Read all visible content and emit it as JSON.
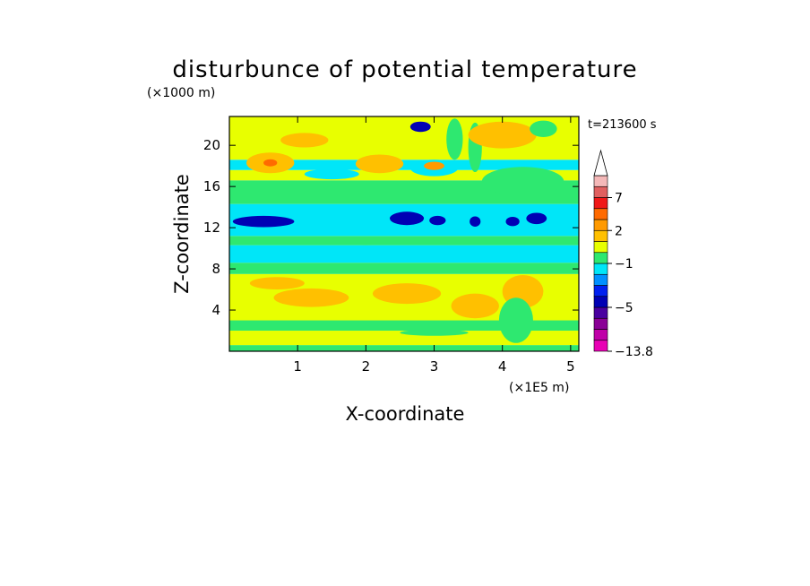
{
  "chart_data": {
    "type": "heatmap",
    "title": "disturbunce of potential temperature",
    "xlabel": "X-coordinate",
    "ylabel": "Z-coordinate",
    "x_unit": "(×1E5 m)",
    "y_unit": "(×1000 m)",
    "time_label": "t=213600 s",
    "xlim": [
      0,
      5.12
    ],
    "ylim": [
      0,
      22.8
    ],
    "x_ticks": [
      1,
      2,
      3,
      4,
      5
    ],
    "y_ticks": [
      4,
      8,
      12,
      16,
      20
    ],
    "grid": false,
    "legend": "colorbar-right",
    "colorbar": {
      "labels": [
        {
          "text": "7",
          "value": 7
        },
        {
          "text": "2",
          "value": 2
        },
        {
          "text": "−1",
          "value": -1
        },
        {
          "text": "−5",
          "value": -5
        },
        {
          "text": "−13.8",
          "value": -13.8
        }
      ],
      "levels": [
        {
          "min": -13.8,
          "max": -9,
          "color": "#e800b4"
        },
        {
          "min": -9,
          "max": -7,
          "color": "#c000a8"
        },
        {
          "min": -7,
          "max": -6,
          "color": "#8a0096"
        },
        {
          "min": -6,
          "max": -5,
          "color": "#4a00a0"
        },
        {
          "min": -5,
          "max": -4,
          "color": "#0000b4"
        },
        {
          "min": -4,
          "max": -3,
          "color": "#0020f0"
        },
        {
          "min": -3,
          "max": -2,
          "color": "#0090ff"
        },
        {
          "min": -2,
          "max": -1,
          "color": "#00e6f8"
        },
        {
          "min": -1,
          "max": 0,
          "color": "#2ee870"
        },
        {
          "min": 0,
          "max": 1,
          "color": "#e8ff00"
        },
        {
          "min": 1,
          "max": 2,
          "color": "#ffc000"
        },
        {
          "min": 2,
          "max": 3,
          "color": "#ff9a00"
        },
        {
          "min": 3,
          "max": 5,
          "color": "#ff6a00"
        },
        {
          "min": 5,
          "max": 7,
          "color": "#f01818"
        },
        {
          "min": 7,
          "max": 9,
          "color": "#e06060"
        },
        {
          "min": 9,
          "max": 12,
          "color": "#f4b8b8"
        }
      ],
      "extend": "max"
    },
    "field_bands": [
      {
        "z0": 0,
        "z1": 0.6,
        "color": "#2ee870"
      },
      {
        "z0": 0.6,
        "z1": 2.0,
        "color": "#e8ff00"
      },
      {
        "z0": 2.0,
        "z1": 3.0,
        "color": "#2ee870"
      },
      {
        "z0": 3.0,
        "z1": 7.5,
        "color": "#e8ff00"
      },
      {
        "z0": 7.5,
        "z1": 8.6,
        "color": "#2ee870"
      },
      {
        "z0": 8.6,
        "z1": 10.3,
        "color": "#00e6f8"
      },
      {
        "z0": 10.3,
        "z1": 11.2,
        "color": "#2ee870"
      },
      {
        "z0": 11.2,
        "z1": 14.3,
        "color": "#00e6f8"
      },
      {
        "z0": 14.3,
        "z1": 16.6,
        "color": "#2ee870"
      },
      {
        "z0": 16.6,
        "z1": 17.6,
        "color": "#e8ff00"
      },
      {
        "z0": 17.6,
        "z1": 18.6,
        "color": "#00e6f8"
      },
      {
        "z0": 18.6,
        "z1": 22.8,
        "color": "#e8ff00"
      }
    ],
    "features": [
      {
        "x": 1.2,
        "z": 5.2,
        "rx": 0.55,
        "rz": 0.9,
        "color": "#ffc000"
      },
      {
        "x": 2.6,
        "z": 5.6,
        "rx": 0.5,
        "rz": 1.0,
        "color": "#ffc000"
      },
      {
        "x": 0.7,
        "z": 6.6,
        "rx": 0.4,
        "rz": 0.6,
        "color": "#ffc000"
      },
      {
        "x": 3.6,
        "z": 4.4,
        "rx": 0.35,
        "rz": 1.2,
        "color": "#ffc000"
      },
      {
        "x": 4.3,
        "z": 5.8,
        "rx": 0.3,
        "rz": 1.6,
        "color": "#ffc000"
      },
      {
        "x": 1.5,
        "z": 2.6,
        "rx": 0.9,
        "rz": 0.25,
        "color": "#2ee870"
      },
      {
        "x": 3.0,
        "z": 1.8,
        "rx": 0.5,
        "rz": 0.3,
        "color": "#2ee870"
      },
      {
        "x": 4.2,
        "z": 3.0,
        "rx": 0.25,
        "rz": 2.2,
        "color": "#2ee870"
      },
      {
        "x": 2.0,
        "z": 10.7,
        "rx": 0.5,
        "rz": 0.4,
        "color": "#2ee870"
      },
      {
        "x": 0.5,
        "z": 12.6,
        "rx": 0.45,
        "rz": 0.55,
        "color": "#0000b4"
      },
      {
        "x": 2.6,
        "z": 12.9,
        "rx": 0.25,
        "rz": 0.65,
        "color": "#0000b4"
      },
      {
        "x": 3.05,
        "z": 12.7,
        "rx": 0.12,
        "rz": 0.45,
        "color": "#0000b4"
      },
      {
        "x": 3.6,
        "z": 12.6,
        "rx": 0.08,
        "rz": 0.5,
        "color": "#0000b4"
      },
      {
        "x": 4.15,
        "z": 12.6,
        "rx": 0.1,
        "rz": 0.45,
        "color": "#0000b4"
      },
      {
        "x": 4.5,
        "z": 12.9,
        "rx": 0.15,
        "rz": 0.55,
        "color": "#0000b4"
      },
      {
        "x": 1.5,
        "z": 17.2,
        "rx": 0.4,
        "rz": 0.5,
        "color": "#00e6f8"
      },
      {
        "x": 3.0,
        "z": 17.8,
        "rx": 0.35,
        "rz": 0.8,
        "color": "#00e6f8"
      },
      {
        "x": 4.3,
        "z": 16.5,
        "rx": 0.6,
        "rz": 1.4,
        "color": "#2ee870"
      },
      {
        "x": 3.3,
        "z": 20.6,
        "rx": 0.12,
        "rz": 2.0,
        "color": "#2ee870"
      },
      {
        "x": 3.6,
        "z": 19.8,
        "rx": 0.1,
        "rz": 2.4,
        "color": "#2ee870"
      },
      {
        "x": 0.6,
        "z": 18.3,
        "rx": 0.35,
        "rz": 1.0,
        "color": "#ffc000"
      },
      {
        "x": 0.6,
        "z": 18.3,
        "rx": 0.1,
        "rz": 0.35,
        "color": "#ff6a00"
      },
      {
        "x": 1.1,
        "z": 20.5,
        "rx": 0.35,
        "rz": 0.7,
        "color": "#ffc000"
      },
      {
        "x": 2.2,
        "z": 18.2,
        "rx": 0.35,
        "rz": 0.9,
        "color": "#ffc000"
      },
      {
        "x": 3.0,
        "z": 18.0,
        "rx": 0.15,
        "rz": 0.4,
        "color": "#ff9a00"
      },
      {
        "x": 2.8,
        "z": 21.8,
        "rx": 0.15,
        "rz": 0.5,
        "color": "#0000b4"
      },
      {
        "x": 4.0,
        "z": 21.0,
        "rx": 0.5,
        "rz": 1.3,
        "color": "#ffc000"
      },
      {
        "x": 4.6,
        "z": 21.6,
        "rx": 0.2,
        "rz": 0.8,
        "color": "#2ee870"
      }
    ]
  }
}
